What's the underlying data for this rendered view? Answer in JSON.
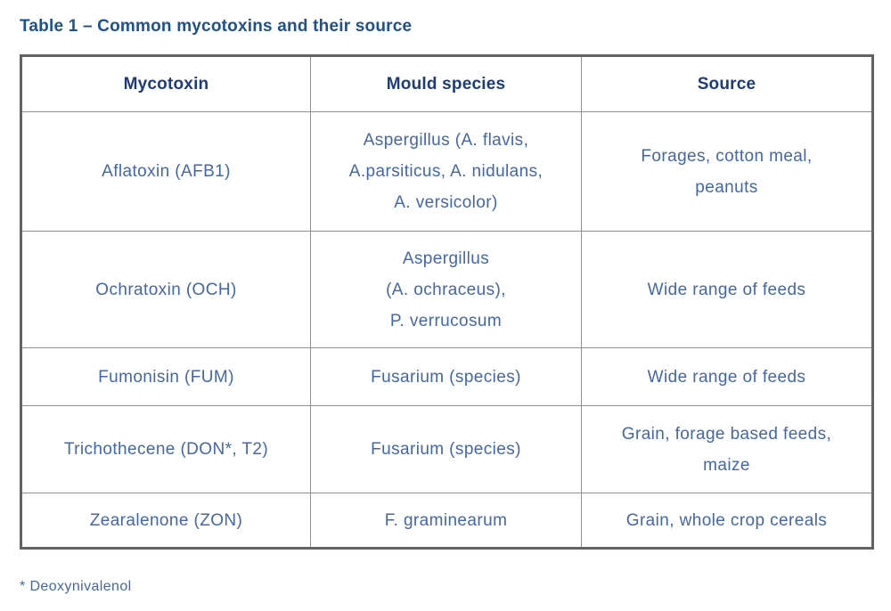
{
  "title": "Table 1 – Common mycotoxins and their source",
  "table": {
    "headers": [
      "Mycotoxin",
      "Mould species",
      "Source"
    ],
    "rows": [
      [
        "Aflatoxin (AFB1)",
        "Aspergillus (A. flavis,\nA.parsiticus, A. nidulans,\nA. versicolor)",
        "Forages, cotton meal,\npeanuts"
      ],
      [
        "Ochratoxin (OCH)",
        "Aspergillus\n(A. ochraceus),\nP. verrucosum",
        "Wide range of feeds"
      ],
      [
        "Fumonisin (FUM)",
        "Fusarium (species)",
        "Wide range of feeds"
      ],
      [
        "Trichothecene (DON*, T2)",
        "Fusarium (species)",
        "Grain, forage based feeds,\nmaize"
      ],
      [
        "Zearalenone (ZON)",
        "F. graminearum",
        "Grain, whole crop cereals"
      ]
    ]
  },
  "footnote": "* Deoxynivalenol",
  "colors": {
    "title_text": "#1d5191",
    "header_text": "#1f3c7a",
    "body_text": "#4466ab",
    "outer_border": "#636363",
    "inner_border": "#8f8f8f",
    "background": "#ffffff"
  }
}
